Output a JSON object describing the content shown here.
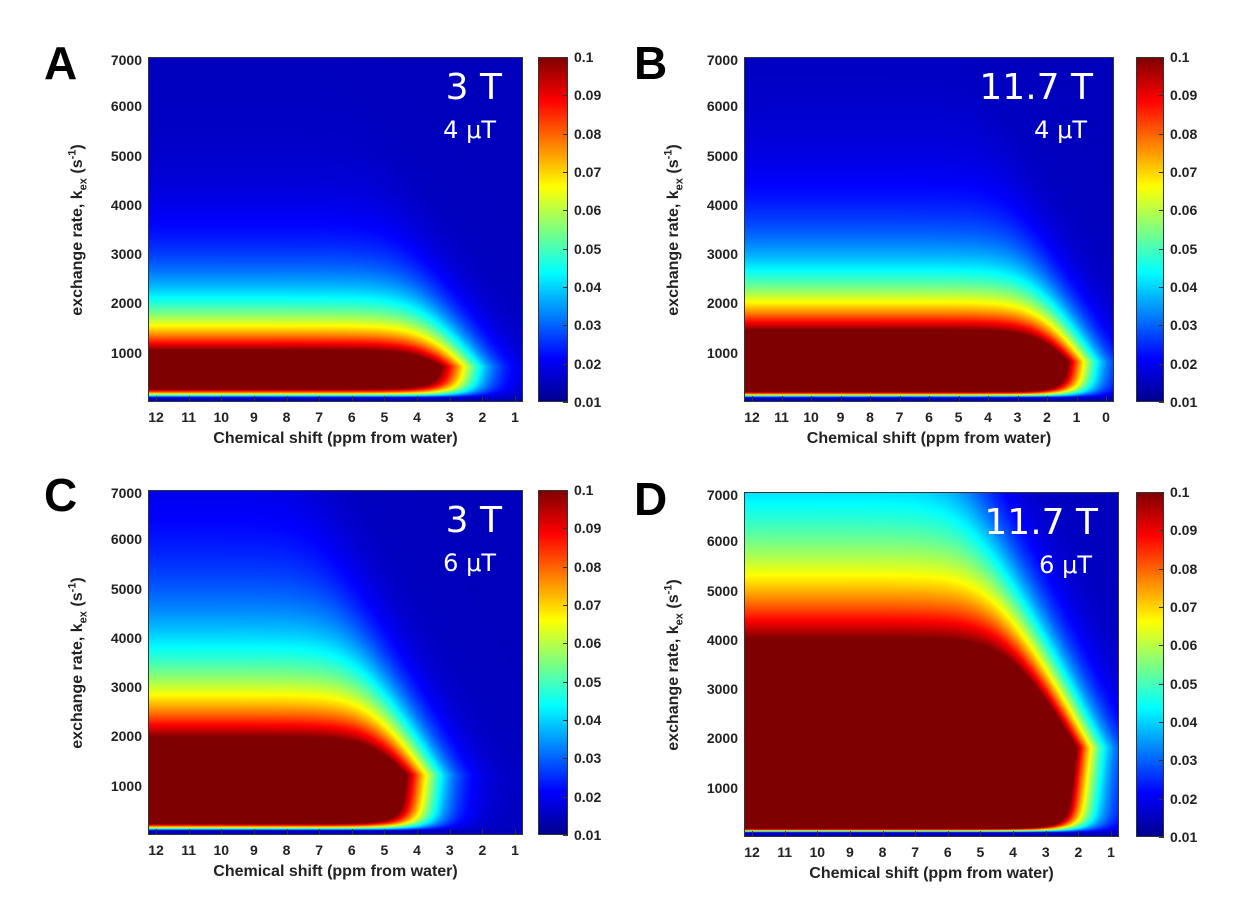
{
  "chart_data": [
    {
      "type": "heatmap",
      "panel_label": "A",
      "field_label": "3 T",
      "power_label": "4 μT",
      "xlabel": "Chemical shift (ppm from water)",
      "ylabel": {
        "main": "exchange rate, k",
        "sub": "ex",
        "unit_open": " (s",
        "sup": "-1",
        "unit_close": ")"
      },
      "x_ticks": [
        "12",
        "11",
        "10",
        "9",
        "8",
        "7",
        "6",
        "5",
        "4",
        "3",
        "2",
        "1"
      ],
      "x_range": [
        12,
        1
      ],
      "y_ticks": [
        "7000",
        "6000",
        "5000",
        "4000",
        "3000",
        "2000",
        "1000"
      ],
      "y_range": [
        0,
        7000
      ],
      "colorbar_ticks": [
        "0.1",
        "0.09",
        "0.08",
        "0.07",
        "0.06",
        "0.05",
        "0.04",
        "0.03",
        "0.02",
        "0.01"
      ],
      "color_range": [
        0.01,
        0.1
      ],
      "colormap": "jet",
      "peak_kex": 700,
      "sat_scale": 1.5,
      "edge_ppm": 2.5
    },
    {
      "type": "heatmap",
      "panel_label": "B",
      "field_label": "11.7 T",
      "power_label": "4 μT",
      "xlabel": "Chemical shift (ppm from water)",
      "ylabel": {
        "main": "exchange rate, k",
        "sub": "ex",
        "unit_open": " (s",
        "sup": "-1",
        "unit_close": ")"
      },
      "x_ticks": [
        "12",
        "11",
        "10",
        "9",
        "8",
        "7",
        "6",
        "5",
        "4",
        "3",
        "2",
        "1",
        "0"
      ],
      "x_range": [
        12,
        0
      ],
      "y_ticks": [
        "7000",
        "6000",
        "5000",
        "4000",
        "3000",
        "2000",
        "1000"
      ],
      "y_range": [
        0,
        7000
      ],
      "colorbar_ticks": [
        "0.1",
        "0.09",
        "0.08",
        "0.07",
        "0.06",
        "0.05",
        "0.04",
        "0.03",
        "0.02",
        "0.01"
      ],
      "color_range": [
        0.01,
        0.1
      ],
      "colormap": "jet",
      "peak_kex": 800,
      "sat_scale": 1.9,
      "edge_ppm": 0.9
    },
    {
      "type": "heatmap",
      "panel_label": "C",
      "field_label": "3 T",
      "power_label": "6 μT",
      "xlabel": "Chemical shift (ppm from water)",
      "ylabel": {
        "main": "exchange rate, k",
        "sub": "ex",
        "unit_open": " (s",
        "sup": "-1",
        "unit_close": ")"
      },
      "x_ticks": [
        "12",
        "11",
        "10",
        "9",
        "8",
        "7",
        "6",
        "5",
        "4",
        "3",
        "2",
        "1"
      ],
      "x_range": [
        12,
        1
      ],
      "y_ticks": [
        "7000",
        "6000",
        "5000",
        "4000",
        "3000",
        "2000",
        "1000"
      ],
      "y_range": [
        0,
        7000
      ],
      "colorbar_ticks": [
        "0.1",
        "0.09",
        "0.08",
        "0.07",
        "0.06",
        "0.05",
        "0.04",
        "0.03",
        "0.02",
        "0.01"
      ],
      "color_range": [
        0.01,
        0.1
      ],
      "colormap": "jet",
      "peak_kex": 1200,
      "sat_scale": 1.7,
      "edge_ppm": 3.5
    },
    {
      "type": "heatmap",
      "panel_label": "D",
      "field_label": "11.7 T",
      "power_label": "6 μT",
      "xlabel": "Chemical shift (ppm from water)",
      "ylabel": {
        "main": "exchange rate, k",
        "sub": "ex",
        "unit_open": " (s",
        "sup": "-1",
        "unit_close": ")"
      },
      "x_ticks": [
        "12",
        "11",
        "10",
        "9",
        "8",
        "7",
        "6",
        "5",
        "4",
        "3",
        "2",
        "1"
      ],
      "x_range": [
        12,
        1
      ],
      "y_ticks": [
        "7000",
        "6000",
        "5000",
        "4000",
        "3000",
        "2000",
        "1000"
      ],
      "y_range": [
        0,
        7000
      ],
      "colorbar_ticks": [
        "0.1",
        "0.09",
        "0.08",
        "0.07",
        "0.06",
        "0.05",
        "0.04",
        "0.03",
        "0.02",
        "0.01"
      ],
      "color_range": [
        0.01,
        0.1
      ],
      "colormap": "jet",
      "peak_kex": 1800,
      "sat_scale": 2.6,
      "edge_ppm": 1.5
    }
  ]
}
